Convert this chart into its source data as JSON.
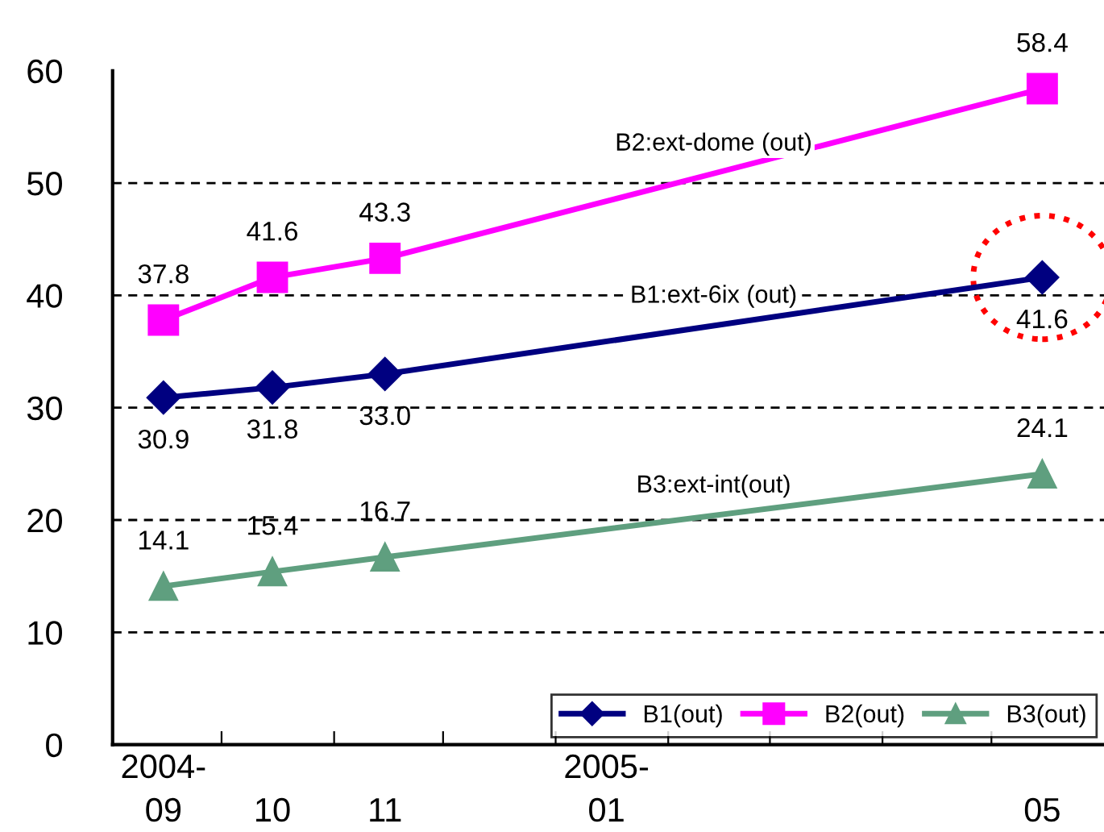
{
  "chart_data": {
    "type": "line",
    "x": [
      "2004-09-15",
      "2004-10-15",
      "2004-11-15",
      "2005-05-15"
    ],
    "series": [
      {
        "name": "B1(out)",
        "color": "#000080",
        "marker": "diamond",
        "values": [
          30.9,
          31.8,
          33.0,
          41.6
        ],
        "value_labels": [
          "30.9",
          "31.8",
          "33.0",
          "41.6"
        ]
      },
      {
        "name": "B2(out)",
        "color": "#ff00ff",
        "marker": "square",
        "values": [
          37.8,
          41.6,
          43.3,
          58.4
        ]
      },
      {
        "name": "B3(out)",
        "color": "#5f9f7f",
        "marker": "triangle",
        "values": [
          14.1,
          15.4,
          16.7,
          24.1
        ]
      }
    ],
    "annotations": [
      "B1:ext-6ix (out)",
      "B2:ext-dome (out)",
      "B3:ext-int(out)"
    ],
    "xlim": [
      "2004-09-01",
      "2005-06-01"
    ],
    "xticks": [
      {
        "value": "2004-09-01",
        "label": null
      },
      {
        "value": "2004-10-01",
        "label": null
      },
      {
        "value": "2004-11-01",
        "label": null
      },
      {
        "value": "2004-12-01",
        "label": null
      },
      {
        "value": "2005-01-01",
        "label": null
      },
      {
        "value": "2005-02-01",
        "label": null
      },
      {
        "value": "2005-03-01",
        "label": null
      },
      {
        "value": "2005-04-01",
        "label": null
      },
      {
        "value": "2005-05-01",
        "label": null
      },
      {
        "value": "2004-09-15",
        "label": "2004-\n09"
      },
      {
        "value": "2004-10-15",
        "label": "\n10"
      },
      {
        "value": "2004-11-15",
        "label": "\n11"
      },
      {
        "value": "2005-01-15",
        "label": "2005-\n01"
      },
      {
        "value": "2005-05-15",
        "label": "\n05"
      }
    ],
    "ylim": [
      0,
      60
    ],
    "yticks": [
      0,
      10,
      20,
      30,
      40,
      50,
      60
    ],
    "grid": "y",
    "legend": "bottom right",
    "line_style": "solid",
    "data_labels": true
  }
}
